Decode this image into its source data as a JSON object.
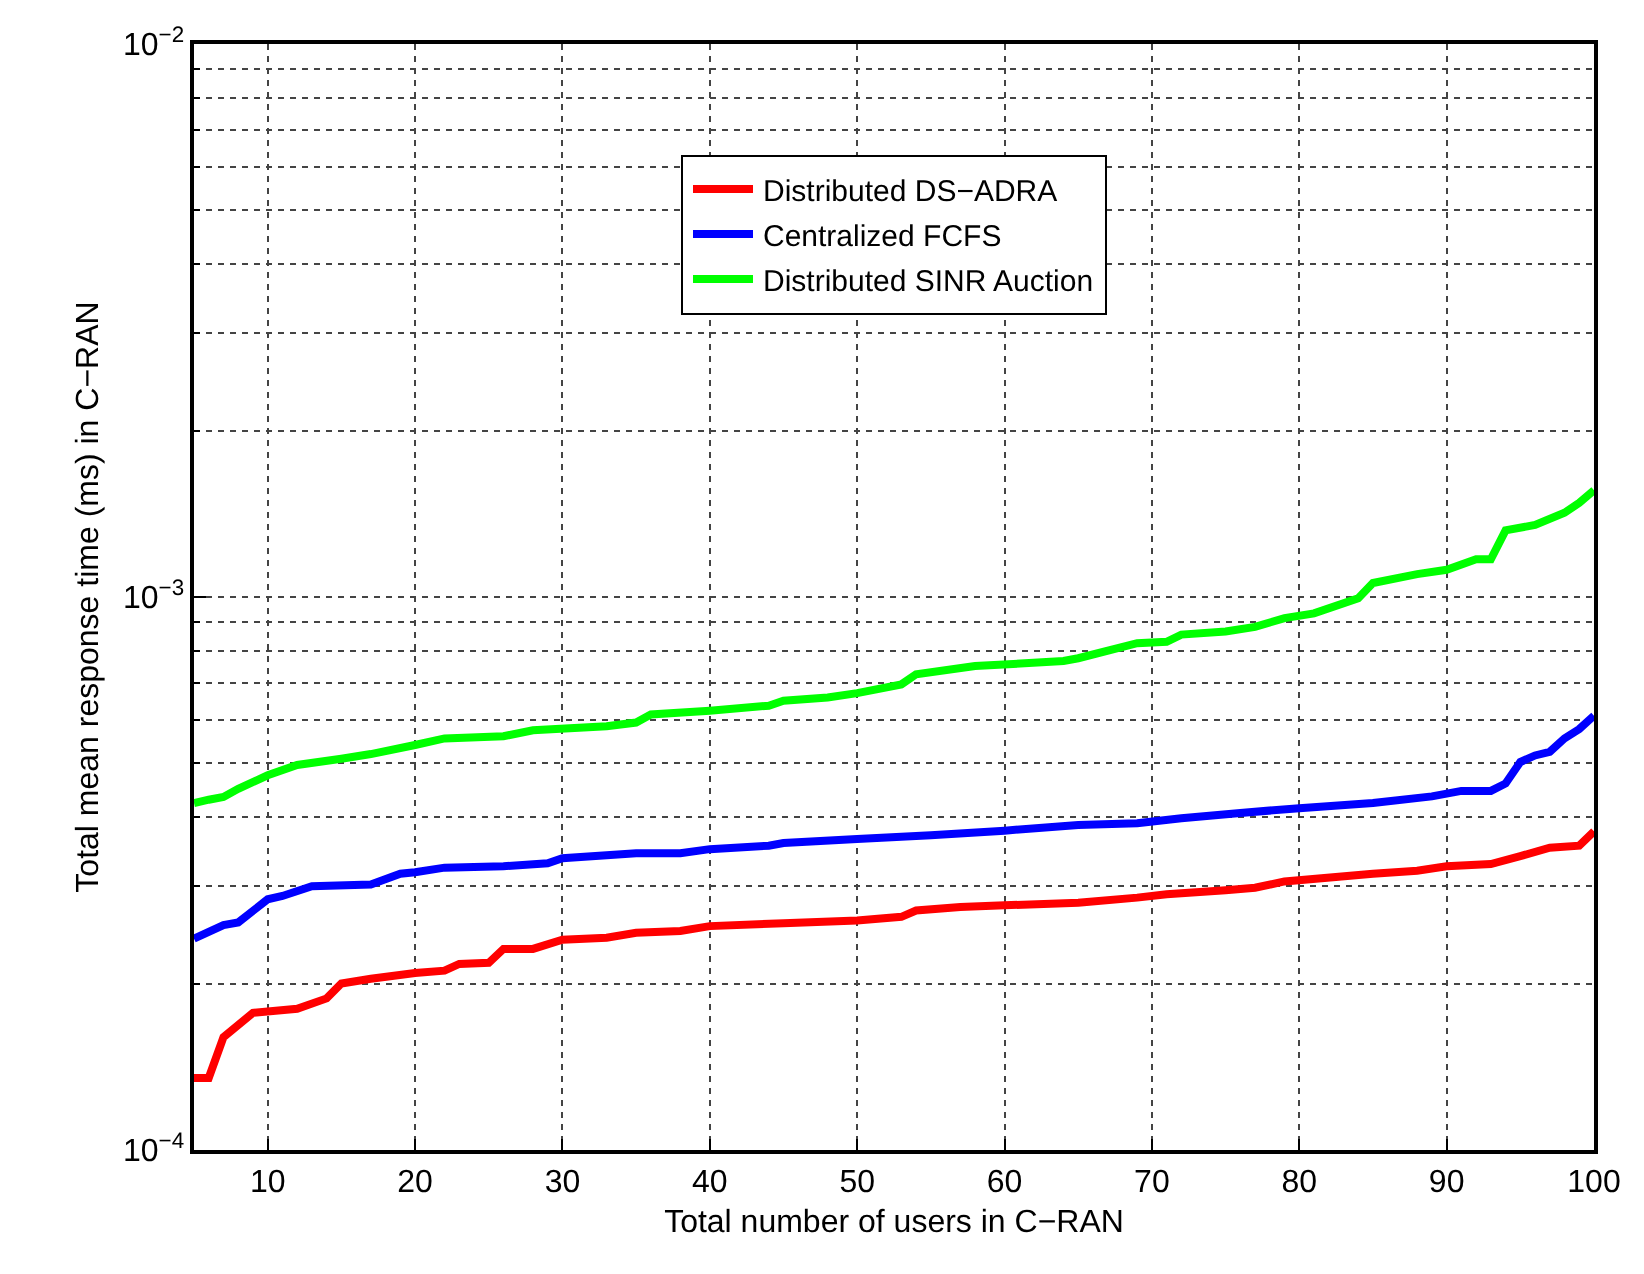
{
  "chart_data": {
    "type": "line",
    "xlabel": "Total number of users in C−RAN",
    "ylabel": "Total mean response time (ms) in C−RAN",
    "xlim": [
      5,
      100
    ],
    "xticks": [
      10,
      20,
      30,
      40,
      50,
      60,
      70,
      80,
      90,
      100
    ],
    "ylim": [
      0.0001,
      0.01
    ],
    "yticks": [
      {
        "value": 0.0001,
        "label": "10$^{−4}$"
      },
      {
        "value": 0.001,
        "label": "10$^{−3}$"
      },
      {
        "value": 0.01,
        "label": "10$^{−2}$"
      }
    ],
    "log": "y",
    "grid": true,
    "legend": "top",
    "marker": "none",
    "line_style": "solid",
    "series": [
      {
        "name": "Distributed DS−ADRA",
        "color": "#ff0000",
        "x": [
          5,
          6,
          7,
          9,
          12,
          14,
          15,
          17,
          20,
          22,
          23,
          25,
          26,
          28,
          30,
          33,
          35,
          38,
          40,
          45,
          50,
          53,
          54,
          57,
          60,
          65,
          69,
          71,
          75,
          77,
          79,
          85,
          88,
          90,
          93,
          95,
          97,
          99,
          100
        ],
        "values": [
          0.000135,
          0.000135,
          0.00016,
          0.000177,
          0.00018,
          0.000188,
          0.0002,
          0.000204,
          0.000209,
          0.000211,
          0.000217,
          0.000218,
          0.000231,
          0.000231,
          0.00024,
          0.000242,
          0.000247,
          0.000249,
          0.000254,
          0.000257,
          0.00026,
          0.000264,
          0.000271,
          0.000275,
          0.000277,
          0.00028,
          0.000286,
          0.00029,
          0.000295,
          0.000298,
          0.000306,
          0.000316,
          0.00032,
          0.000326,
          0.000329,
          0.00034,
          0.000352,
          0.000355,
          0.000377
        ]
      },
      {
        "name": "Centralized FCFS",
        "color": "#0000ff",
        "x": [
          5,
          7,
          8,
          10,
          11,
          13,
          17,
          19,
          20,
          22,
          26,
          29,
          30,
          35,
          38,
          40,
          44,
          45,
          50,
          55,
          60,
          65,
          69,
          72,
          76,
          80,
          85,
          89,
          91,
          93,
          94,
          95,
          96,
          97,
          98,
          99,
          100
        ],
        "values": [
          0.000241,
          0.000255,
          0.000258,
          0.000284,
          0.000288,
          0.0003,
          0.000302,
          0.000316,
          0.000318,
          0.000324,
          0.000326,
          0.00033,
          0.000337,
          0.000344,
          0.000344,
          0.00035,
          0.000355,
          0.000359,
          0.000365,
          0.000371,
          0.000378,
          0.000387,
          0.00039,
          0.000398,
          0.000407,
          0.000415,
          0.000424,
          0.000436,
          0.000446,
          0.000446,
          0.00046,
          0.000503,
          0.000517,
          0.000525,
          0.000555,
          0.000577,
          0.00061
        ]
      },
      {
        "name": "Distributed SINR Auction",
        "color": "#00ff00",
        "x": [
          5,
          6,
          7,
          8,
          10,
          12,
          15,
          17,
          20,
          22,
          26,
          28,
          33,
          35,
          36,
          40,
          44,
          45,
          48,
          50,
          53,
          54,
          58,
          64,
          65,
          69,
          71,
          72,
          75,
          77,
          79,
          81,
          84,
          85,
          88,
          90,
          92,
          93,
          94,
          96,
          98,
          99,
          100
        ],
        "values": [
          0.000424,
          0.00043,
          0.000435,
          0.00045,
          0.000476,
          0.000497,
          0.00051,
          0.00052,
          0.00054,
          0.000555,
          0.00056,
          0.000574,
          0.000584,
          0.000593,
          0.000613,
          0.000623,
          0.000636,
          0.000649,
          0.000658,
          0.00067,
          0.000695,
          0.000725,
          0.00075,
          0.000766,
          0.000775,
          0.000825,
          0.00083,
          0.000855,
          0.000866,
          0.000883,
          0.000916,
          0.000934,
          0.000995,
          0.00106,
          0.0011,
          0.00112,
          0.00117,
          0.00117,
          0.00132,
          0.00135,
          0.00142,
          0.00148,
          0.00156
        ]
      }
    ]
  }
}
